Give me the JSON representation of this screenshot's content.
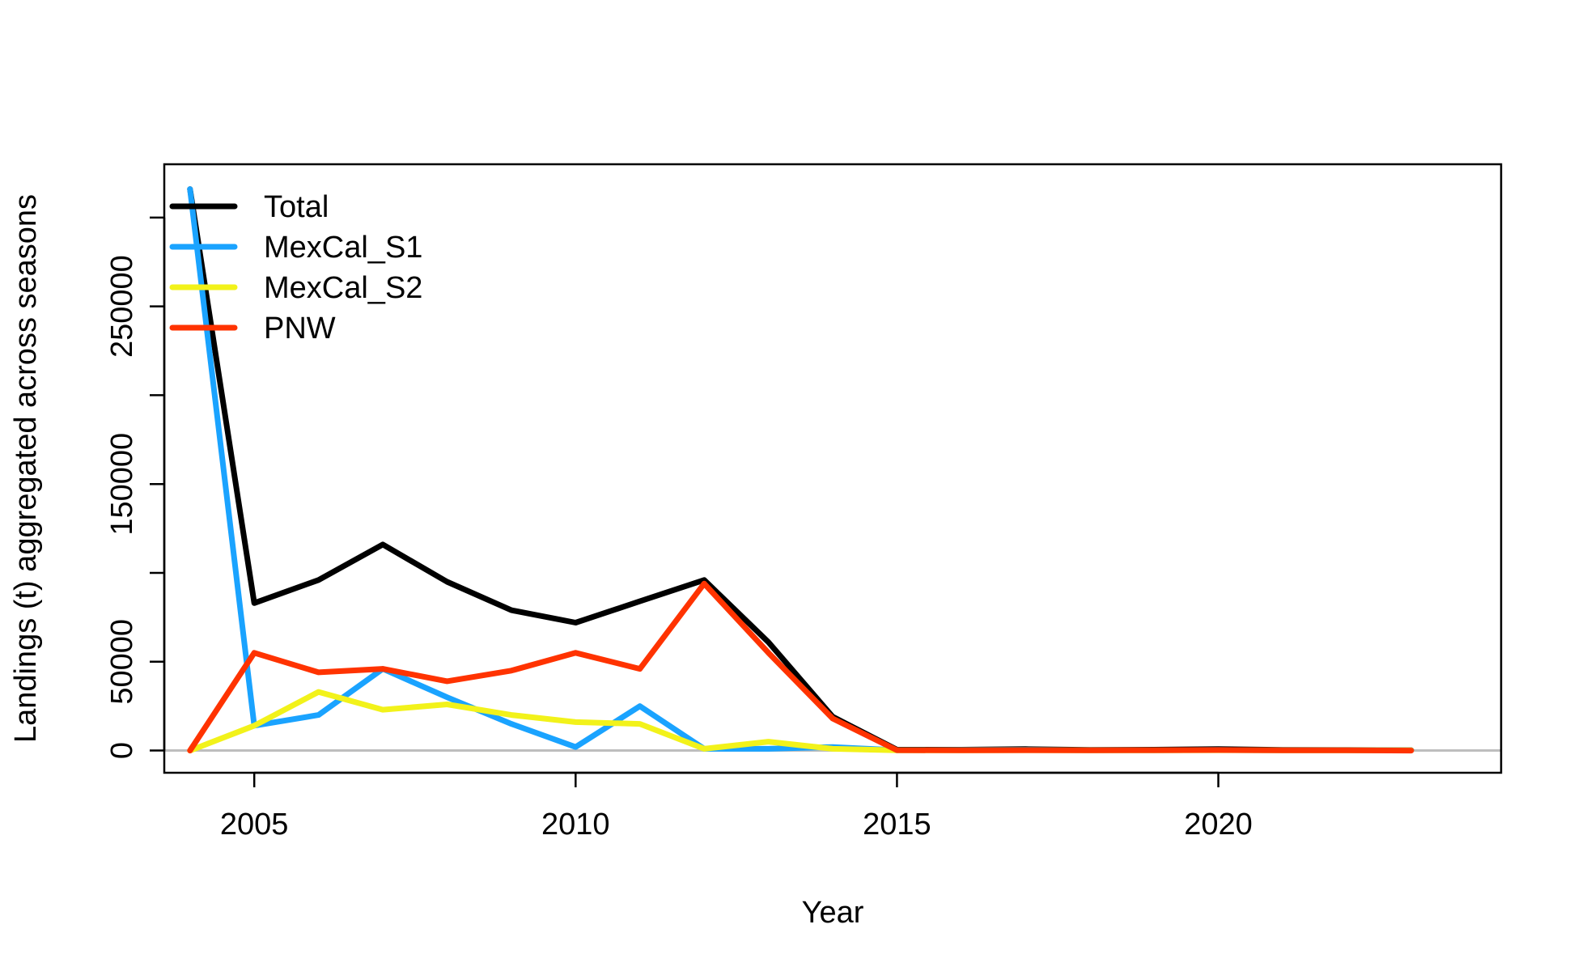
{
  "chart_data": {
    "type": "line",
    "title": "",
    "xlabel": "Year",
    "ylabel": "Landings (t) aggregated across seasons",
    "xlim": [
      2003.6,
      2024.4
    ],
    "ylim": [
      -12500,
      330000
    ],
    "x_ticks": [
      2005,
      2010,
      2015,
      2020
    ],
    "y_ticks": [
      0,
      50000,
      100000,
      150000,
      200000,
      250000,
      300000
    ],
    "y_tick_labels": [
      "0",
      "50000",
      "",
      "150000",
      "",
      "250000",
      ""
    ],
    "grid": false,
    "legend_position": "top-left",
    "reference_line": {
      "y": 0,
      "color": "#bebebe"
    },
    "x": [
      2004,
      2005,
      2006,
      2007,
      2008,
      2009,
      2010,
      2011,
      2012,
      2013,
      2014,
      2015,
      2016,
      2017,
      2018,
      2019,
      2020,
      2021,
      2022,
      2023
    ],
    "series": [
      {
        "name": "Total",
        "color": "#000000",
        "values": [
          316000,
          83000,
          96000,
          116000,
          95000,
          79000,
          72000,
          84000,
          96000,
          61000,
          19000,
          500,
          500,
          800,
          400,
          500,
          800,
          400,
          300,
          200
        ]
      },
      {
        "name": "MexCal_S1",
        "color": "#1aa3ff",
        "values": [
          316000,
          14000,
          20000,
          46000,
          30000,
          15000,
          2000,
          25000,
          1000,
          1000,
          2000,
          200,
          300,
          400,
          200,
          200,
          300,
          200,
          200,
          100
        ]
      },
      {
        "name": "MexCal_S2",
        "color": "#f2f21a",
        "values": [
          0,
          14000,
          33000,
          23000,
          26000,
          20000,
          16000,
          15000,
          1000,
          5000,
          1000,
          100,
          100,
          200,
          100,
          100,
          200,
          100,
          100,
          100
        ]
      },
      {
        "name": "PNW",
        "color": "#ff3300",
        "values": [
          0,
          55000,
          44000,
          46000,
          39000,
          45000,
          55000,
          46000,
          94000,
          55000,
          18000,
          200,
          100,
          200,
          100,
          200,
          300,
          100,
          100,
          0
        ]
      }
    ]
  }
}
